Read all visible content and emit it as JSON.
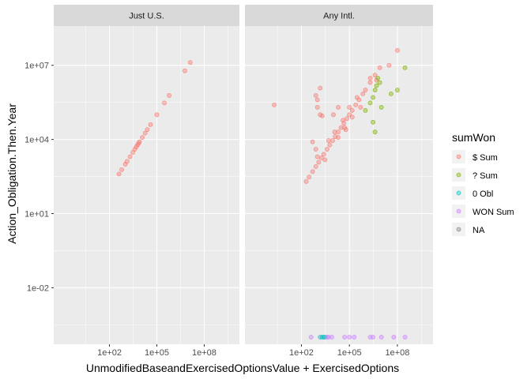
{
  "chart_data": {
    "type": "scatter",
    "facets": [
      {
        "label": "Just U.S.",
        "series": [
          {
            "name": "$ Sum",
            "points": [
              [
                400,
                400
              ],
              [
                600,
                600
              ],
              [
                1000,
                1000
              ],
              [
                1300,
                1300
              ],
              [
                2000,
                2000
              ],
              [
                3000,
                3000
              ],
              [
                4000,
                4000
              ],
              [
                5000,
                5000
              ],
              [
                6000,
                6000
              ],
              [
                7000,
                7000
              ],
              [
                8000,
                8000
              ],
              [
                12000,
                12000
              ],
              [
                18000,
                18000
              ],
              [
                25000,
                25000
              ],
              [
                40000,
                40000
              ],
              [
                100000,
                100000
              ],
              [
                300000,
                300000
              ],
              [
                600000,
                600000
              ],
              [
                6000000,
                6000000
              ],
              [
                13000000,
                13000000
              ]
            ]
          }
        ]
      },
      {
        "label": "Any Intl.",
        "series": [
          {
            "name": "$ Sum",
            "points": [
              [
                200,
                200
              ],
              [
                300,
                300
              ],
              [
                500,
                500
              ],
              [
                800,
                800
              ],
              [
                1200,
                1200
              ],
              [
                1800,
                1800
              ],
              [
                2500,
                2500
              ],
              [
                4000,
                4000
              ],
              [
                6000,
                6000
              ],
              [
                9000,
                9000
              ],
              [
                13000,
                13000
              ],
              [
                20000,
                20000
              ],
              [
                30000,
                30000
              ],
              [
                45000,
                45000
              ],
              [
                70000,
                70000
              ],
              [
                100000,
                100000
              ],
              [
                150000,
                150000
              ],
              [
                250000,
                250000
              ],
              [
                400000,
                400000
              ],
              [
                700000,
                700000
              ],
              [
                1000000,
                1000000
              ],
              [
                2000000,
                2000000
              ],
              [
                4000000,
                4000000
              ],
              [
                8000000,
                8000000
              ],
              [
                1000,
                2000
              ],
              [
                3000,
                1500
              ],
              [
                5000,
                9000
              ],
              [
                12000,
                20000
              ],
              [
                20000,
                12000
              ],
              [
                40000,
                60000
              ],
              [
                60000,
                25000
              ],
              [
                100000,
                200000
              ],
              [
                150000,
                80000
              ],
              [
                300000,
                500000
              ],
              [
                500000,
                200000
              ],
              [
                1000,
                200000
              ],
              [
                1000,
                400000
              ],
              [
                1500,
                100000
              ],
              [
                2000,
                90000
              ],
              [
                800,
                600000
              ],
              [
                1500,
                1200000
              ],
              [
                2,
                250000
              ],
              [
                500,
                8000
              ],
              [
                800,
                4000
              ],
              [
                2000000,
                3000000
              ],
              [
                5000000,
                2500000
              ],
              [
                100000000,
                40000000
              ],
              [
                30000000,
                10000000
              ],
              [
                10000,
                100000
              ],
              [
                20000,
                200000
              ],
              [
                50000,
                30000
              ]
            ]
          },
          {
            "name": "? Sum",
            "points": [
              [
                1000000,
                150000
              ],
              [
                2000000,
                300000
              ],
              [
                3000000,
                500000
              ],
              [
                4000000,
                1000000
              ],
              [
                5000000,
                1500000
              ],
              [
                6000000,
                3000000
              ],
              [
                8000000,
                2000000
              ],
              [
                4000000,
                20000
              ],
              [
                3000000,
                50000
              ],
              [
                10000000,
                200000
              ],
              [
                40000000,
                700000
              ],
              [
                100000000,
                1000000
              ],
              [
                300000000,
                8000000
              ]
            ]
          },
          {
            "name": "0 Obl",
            "points": [
              [
                1500,
                0.0001
              ],
              [
                2000,
                0.0001
              ],
              [
                2500,
                0.0001
              ],
              [
                3000,
                0.0001
              ]
            ]
          },
          {
            "name": "WON Sum",
            "points": [
              [
                400,
                0.0001
              ],
              [
                4000,
                0.0001
              ],
              [
                5000,
                0.0001
              ],
              [
                8000,
                0.0001
              ],
              [
                50000,
                0.0001
              ],
              [
                100000,
                0.0001
              ],
              [
                200000,
                0.0001
              ],
              [
                2000000,
                0.0001
              ],
              [
                3000000,
                0.0001
              ],
              [
                10000000,
                0.0001
              ],
              [
                60000000,
                0.0001
              ],
              [
                300000000,
                0.0001
              ]
            ]
          }
        ]
      }
    ],
    "x_scale": "log10",
    "y_scale": "log10",
    "xlim": [
      0.1,
      5000000000
    ],
    "ylim": [
      0.0001,
      200000000
    ],
    "x_ticks": [
      {
        "value": 100,
        "label": "1e+02"
      },
      {
        "value": 100000,
        "label": "1e+05"
      },
      {
        "value": 100000000,
        "label": "1e+08"
      }
    ],
    "y_ticks": [
      {
        "value": 0.01,
        "label": "1e-02"
      },
      {
        "value": 10,
        "label": "1e+01"
      },
      {
        "value": 10000,
        "label": "1e+04"
      },
      {
        "value": 10000000,
        "label": "1e+07"
      }
    ],
    "xlabel": "UnmodifiedBaseandExercisedOptionsValue + ExercisedOptions",
    "ylabel": "Action_Obligation.Then.Year",
    "legend": {
      "title": "sumWon",
      "position": "right",
      "entries": [
        {
          "name": "$ Sum",
          "color": "#F8766D"
        },
        {
          "name": "? Sum",
          "color": "#7CAE00"
        },
        {
          "name": "0 Obl",
          "color": "#00BFC4"
        },
        {
          "name": "WON Sum",
          "color": "#C77CFF"
        },
        {
          "name": "NA",
          "color": "#7F7F7F"
        }
      ]
    },
    "grid": true
  },
  "style": {
    "panel_bg": "#EBEBEB",
    "strip_bg": "#D9D9D9",
    "grid_major": "#FFFFFF",
    "point_alpha": 0.4
  }
}
